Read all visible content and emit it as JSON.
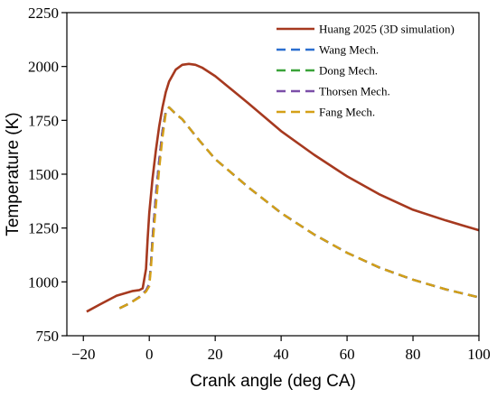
{
  "chart_data": {
    "type": "line",
    "title": "",
    "xlabel": "Crank angle (deg CA)",
    "ylabel": "Temperature (K)",
    "xlim": [
      -25,
      100
    ],
    "ylim": [
      750,
      2250
    ],
    "xticks": [
      -20,
      0,
      20,
      40,
      60,
      80,
      100
    ],
    "yticks": [
      750,
      1000,
      1250,
      1500,
      1750,
      2000,
      2250
    ],
    "xtick_labels": [
      "−20",
      "0",
      "20",
      "40",
      "60",
      "80",
      "100"
    ],
    "ytick_labels": [
      "750",
      "1000",
      "1250",
      "1500",
      "1750",
      "2000",
      "2250"
    ],
    "grid": false,
    "legend_position": "top-right",
    "series": [
      {
        "name": "Huang 2025 (3D simulation)",
        "color": "#a6391f",
        "dash": "solid",
        "x": [
          -19,
          -15,
          -10,
          -5,
          -3,
          -2,
          -1,
          -0.5,
          0,
          1,
          2,
          3,
          4,
          5,
          6,
          8,
          10,
          12,
          14,
          16,
          20,
          30,
          40,
          50,
          60,
          70,
          80,
          90,
          100
        ],
        "y": [
          862,
          895,
          935,
          958,
          962,
          970,
          1060,
          1200,
          1320,
          1480,
          1610,
          1720,
          1810,
          1880,
          1930,
          1985,
          2008,
          2012,
          2008,
          1995,
          1955,
          1830,
          1700,
          1590,
          1490,
          1405,
          1335,
          1285,
          1240
        ]
      },
      {
        "name": "Wang Mech.",
        "color": "#2b6fd0",
        "dash": "dashed",
        "x": [
          -9,
          -6,
          -3,
          -1,
          0,
          0.5,
          1,
          2,
          3,
          4,
          5,
          6,
          8,
          10,
          15,
          20,
          30,
          40,
          50,
          60,
          70,
          80,
          90,
          100
        ],
        "y": [
          878,
          900,
          930,
          960,
          990,
          1080,
          1200,
          1400,
          1560,
          1700,
          1790,
          1810,
          1780,
          1755,
          1660,
          1570,
          1440,
          1320,
          1220,
          1135,
          1065,
          1010,
          965,
          928
        ]
      },
      {
        "name": "Dong Mech.",
        "color": "#3aa339",
        "dash": "dashed",
        "x": [
          -9,
          -6,
          -3,
          -1,
          0,
          0.5,
          1,
          2,
          3,
          4,
          5,
          6,
          8,
          10,
          15,
          20,
          30,
          40,
          50,
          60,
          70,
          80,
          90,
          100
        ],
        "y": [
          878,
          900,
          930,
          960,
          990,
          1080,
          1200,
          1400,
          1560,
          1700,
          1790,
          1810,
          1780,
          1755,
          1660,
          1570,
          1440,
          1320,
          1220,
          1135,
          1065,
          1010,
          965,
          928
        ]
      },
      {
        "name": "Thorsen Mech.",
        "color": "#7b4fa8",
        "dash": "dashed",
        "x": [
          -9,
          -6,
          -3,
          -1,
          0,
          0.5,
          1,
          2,
          3,
          4,
          5,
          6,
          8,
          10,
          15,
          20,
          30,
          40,
          50,
          60,
          70,
          80,
          90,
          100
        ],
        "y": [
          878,
          900,
          930,
          960,
          990,
          1080,
          1200,
          1400,
          1560,
          1700,
          1790,
          1810,
          1780,
          1755,
          1660,
          1570,
          1440,
          1320,
          1220,
          1135,
          1065,
          1010,
          965,
          928
        ]
      },
      {
        "name": "Fang Mech.",
        "color": "#d4a017",
        "dash": "dashed",
        "x": [
          -9,
          -6,
          -3,
          -1,
          0,
          0.5,
          1,
          2,
          3,
          4,
          5,
          6,
          8,
          10,
          15,
          20,
          30,
          40,
          50,
          60,
          70,
          80,
          90,
          100
        ],
        "y": [
          878,
          900,
          928,
          955,
          980,
          1060,
          1170,
          1350,
          1520,
          1670,
          1780,
          1810,
          1780,
          1755,
          1660,
          1570,
          1440,
          1320,
          1220,
          1135,
          1065,
          1010,
          965,
          928
        ]
      }
    ]
  }
}
